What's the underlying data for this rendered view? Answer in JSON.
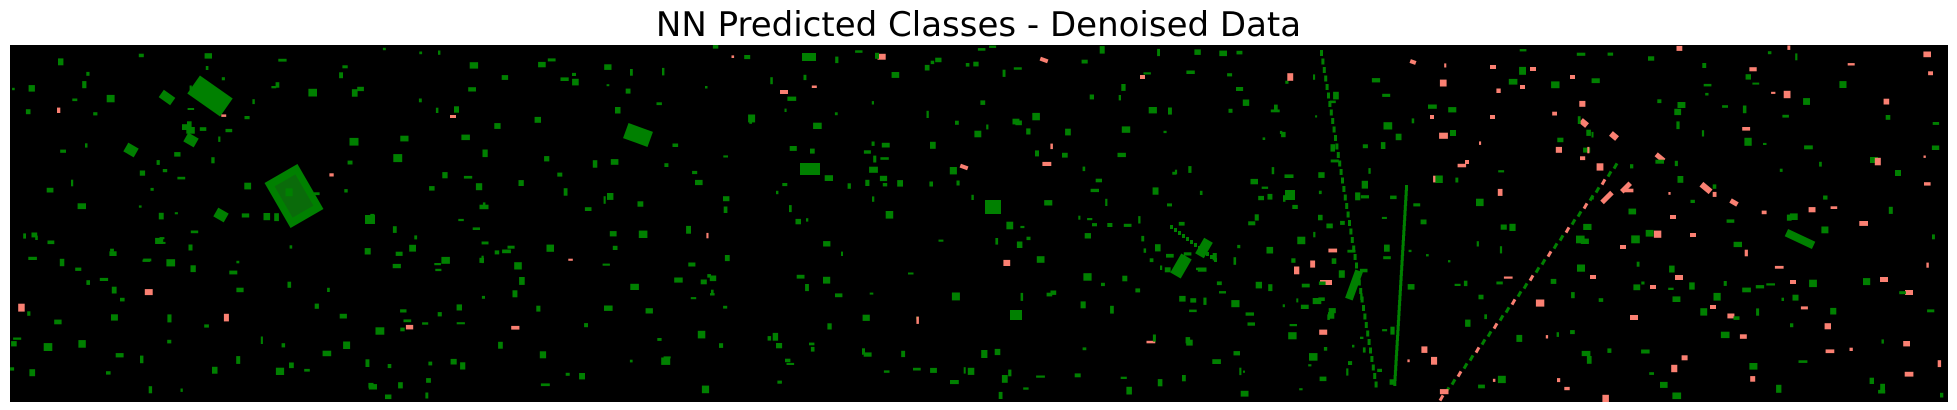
{
  "figure": {
    "title": "NN Predicted Classes - Denoised Data"
  },
  "colors": {
    "background": "#000000",
    "class_a": "#008000",
    "class_b": "#fa8072"
  }
}
